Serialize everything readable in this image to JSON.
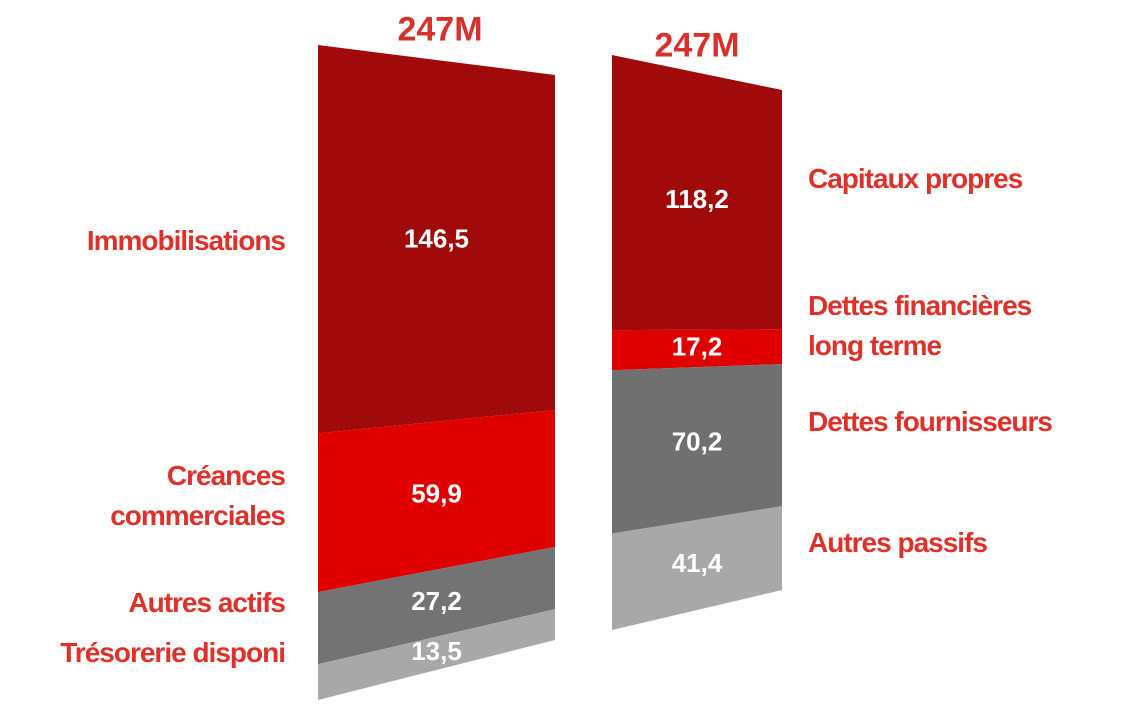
{
  "chart_data": [
    {
      "type": "bar",
      "stacked": true,
      "title": "247M",
      "label_side": "left",
      "series": [
        {
          "name": "Immobilisations",
          "color": "#a00a0a",
          "values": [
            146.5
          ],
          "value_labels": [
            "146,5"
          ]
        },
        {
          "name": "Créances\ncommerciales",
          "color": "#e00000",
          "values": [
            59.9
          ],
          "value_labels": [
            "59,9"
          ]
        },
        {
          "name": "Autres actifs",
          "color": "#737373",
          "values": [
            27.2
          ],
          "value_labels": [
            "27,2"
          ]
        },
        {
          "name": "Trésorerie disponi",
          "color": "#a8a8a8",
          "values": [
            13.5
          ],
          "value_labels": [
            "13,5"
          ]
        }
      ]
    },
    {
      "type": "bar",
      "stacked": true,
      "title": "247M",
      "label_side": "right",
      "series": [
        {
          "name": "Capitaux propres",
          "color": "#a00a0a",
          "values": [
            118.2
          ],
          "value_labels": [
            "118,2"
          ]
        },
        {
          "name": "Dettes financières\nlong terme",
          "color": "#e00000",
          "values": [
            17.2
          ],
          "value_labels": [
            "17,2"
          ]
        },
        {
          "name": "Dettes fournisseurs",
          "color": "#707070",
          "values": [
            70.2
          ],
          "value_labels": [
            "70,2"
          ]
        },
        {
          "name": "Autres passifs",
          "color": "#a8a8a8",
          "values": [
            41.4
          ],
          "value_labels": [
            "41,4"
          ]
        }
      ]
    }
  ]
}
